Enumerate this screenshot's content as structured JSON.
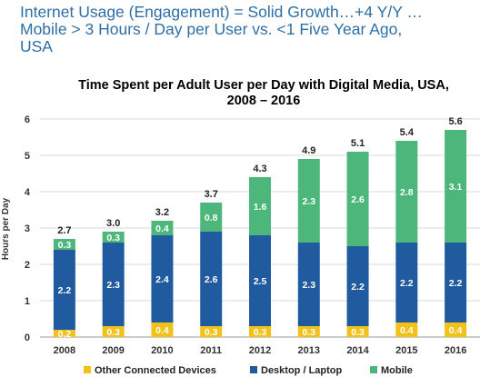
{
  "headline": {
    "line1": "Internet Usage (Engagement) = Solid Growth…+4 Y/Y …",
    "line2": "Mobile > 3 Hours / Day per User vs. <1 Five Year Ago,",
    "line3": "USA"
  },
  "colors": {
    "other": "#f2c21b",
    "desktop": "#1f5b9e",
    "mobile": "#4db67a"
  },
  "chart_data": {
    "type": "bar",
    "stacked": true,
    "title_line1": "Time Spent per Adult User per Day with Digital Media, USA,",
    "title_line2": "2008 – 2016",
    "ylabel": "Hours per Day",
    "xlabel": "",
    "ylim": [
      0,
      6
    ],
    "yticks": [
      "0",
      "1",
      "2",
      "3",
      "4",
      "5",
      "6"
    ],
    "grid": true,
    "legend_position": "bottom",
    "categories": [
      "2008",
      "2009",
      "2010",
      "2011",
      "2012",
      "2013",
      "2014",
      "2015",
      "2016"
    ],
    "totals": [
      "2.7",
      "3.0",
      "3.2",
      "3.7",
      "4.3",
      "4.9",
      "5.1",
      "5.4",
      "5.6"
    ],
    "series": [
      {
        "name": "Other Connected Devices",
        "values": [
          0.2,
          0.3,
          0.4,
          0.3,
          0.3,
          0.3,
          0.3,
          0.4,
          0.4
        ],
        "labels": [
          "0.2",
          "0.3",
          "0.4",
          "0.3",
          "0.3",
          "0.3",
          "0.3",
          "0.4",
          "0.4"
        ]
      },
      {
        "name": "Desktop / Laptop",
        "values": [
          2.2,
          2.3,
          2.4,
          2.6,
          2.5,
          2.3,
          2.2,
          2.2,
          2.2
        ],
        "labels": [
          "2.2",
          "2.3",
          "2.4",
          "2.6",
          "2.5",
          "2.3",
          "2.2",
          "2.2",
          "2.2"
        ]
      },
      {
        "name": "Mobile",
        "values": [
          0.3,
          0.3,
          0.4,
          0.8,
          1.6,
          2.3,
          2.6,
          2.8,
          3.1
        ],
        "labels": [
          "0.3",
          "0.3",
          "0.4",
          "0.8",
          "1.6",
          "2.3",
          "2.6",
          "2.8",
          "3.1"
        ]
      }
    ]
  }
}
